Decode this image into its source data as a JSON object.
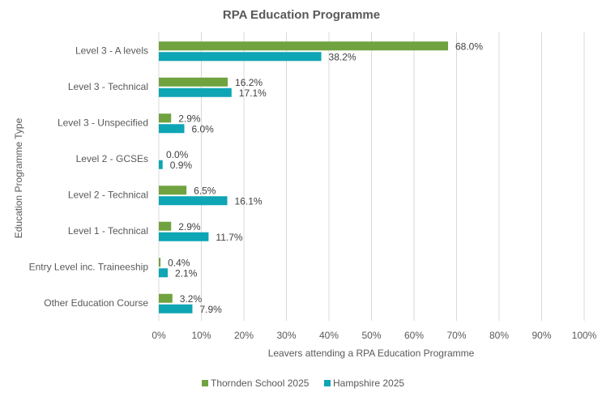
{
  "chart_data": {
    "type": "bar",
    "orientation": "horizontal",
    "title": "RPA Education Programme",
    "xlabel": "Leavers attending a RPA Education Programme",
    "ylabel": "Education Programme Type",
    "xlim": [
      0,
      100
    ],
    "x_ticks": [
      "0%",
      "10%",
      "20%",
      "30%",
      "40%",
      "50%",
      "60%",
      "70%",
      "80%",
      "90%",
      "100%"
    ],
    "categories": [
      "Level 3 - A levels",
      "Level 3 - Technical",
      "Level 3 - Unspecified",
      "Level 2 - GCSEs",
      "Level 2 - Technical",
      "Level 1 - Technical",
      "Entry Level inc. Traineeship",
      "Other Education Course"
    ],
    "series": [
      {
        "name": "Thornden School 2025",
        "color": "#70A33F",
        "values": [
          68.0,
          16.2,
          2.9,
          0.0,
          6.5,
          2.9,
          0.4,
          3.2
        ],
        "labels": [
          "68.0%",
          "16.2%",
          "2.9%",
          "0.0%",
          "6.5%",
          "2.9%",
          "0.4%",
          "3.2%"
        ]
      },
      {
        "name": "Hampshire 2025",
        "color": "#0EA5B5",
        "values": [
          38.2,
          17.1,
          6.0,
          0.9,
          16.1,
          11.7,
          2.1,
          7.9
        ],
        "labels": [
          "38.2%",
          "17.1%",
          "6.0%",
          "0.9%",
          "16.1%",
          "11.7%",
          "2.1%",
          "7.9%"
        ]
      }
    ],
    "grid": true,
    "legend_position": "bottom"
  }
}
